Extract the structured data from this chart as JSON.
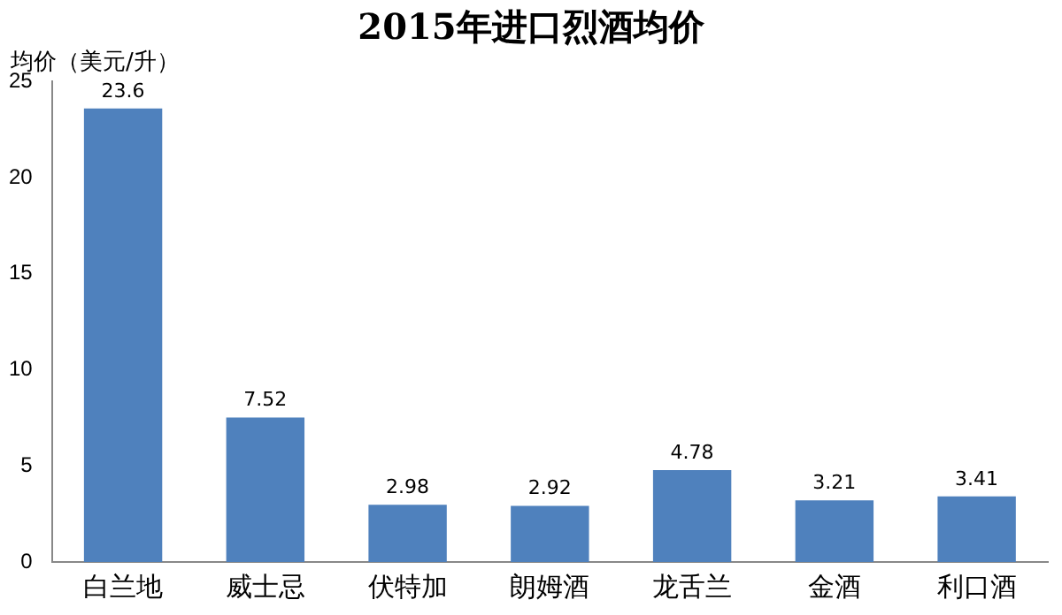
{
  "chart_data": {
    "type": "bar",
    "title": "2015年进口烈酒均价",
    "ylabel": "均价（美元/升）",
    "categories": [
      "白兰地",
      "威士忌",
      "伏特加",
      "朗姆酒",
      "龙舌兰",
      "金酒",
      "利口酒"
    ],
    "values": [
      23.6,
      7.52,
      2.98,
      2.92,
      4.78,
      3.21,
      3.41
    ],
    "color": "#4f81bd",
    "ylim": [
      0,
      25
    ],
    "yticks": [
      0,
      5,
      10,
      15,
      20,
      25
    ],
    "grid": false,
    "legend": false,
    "data_labels": true
  }
}
